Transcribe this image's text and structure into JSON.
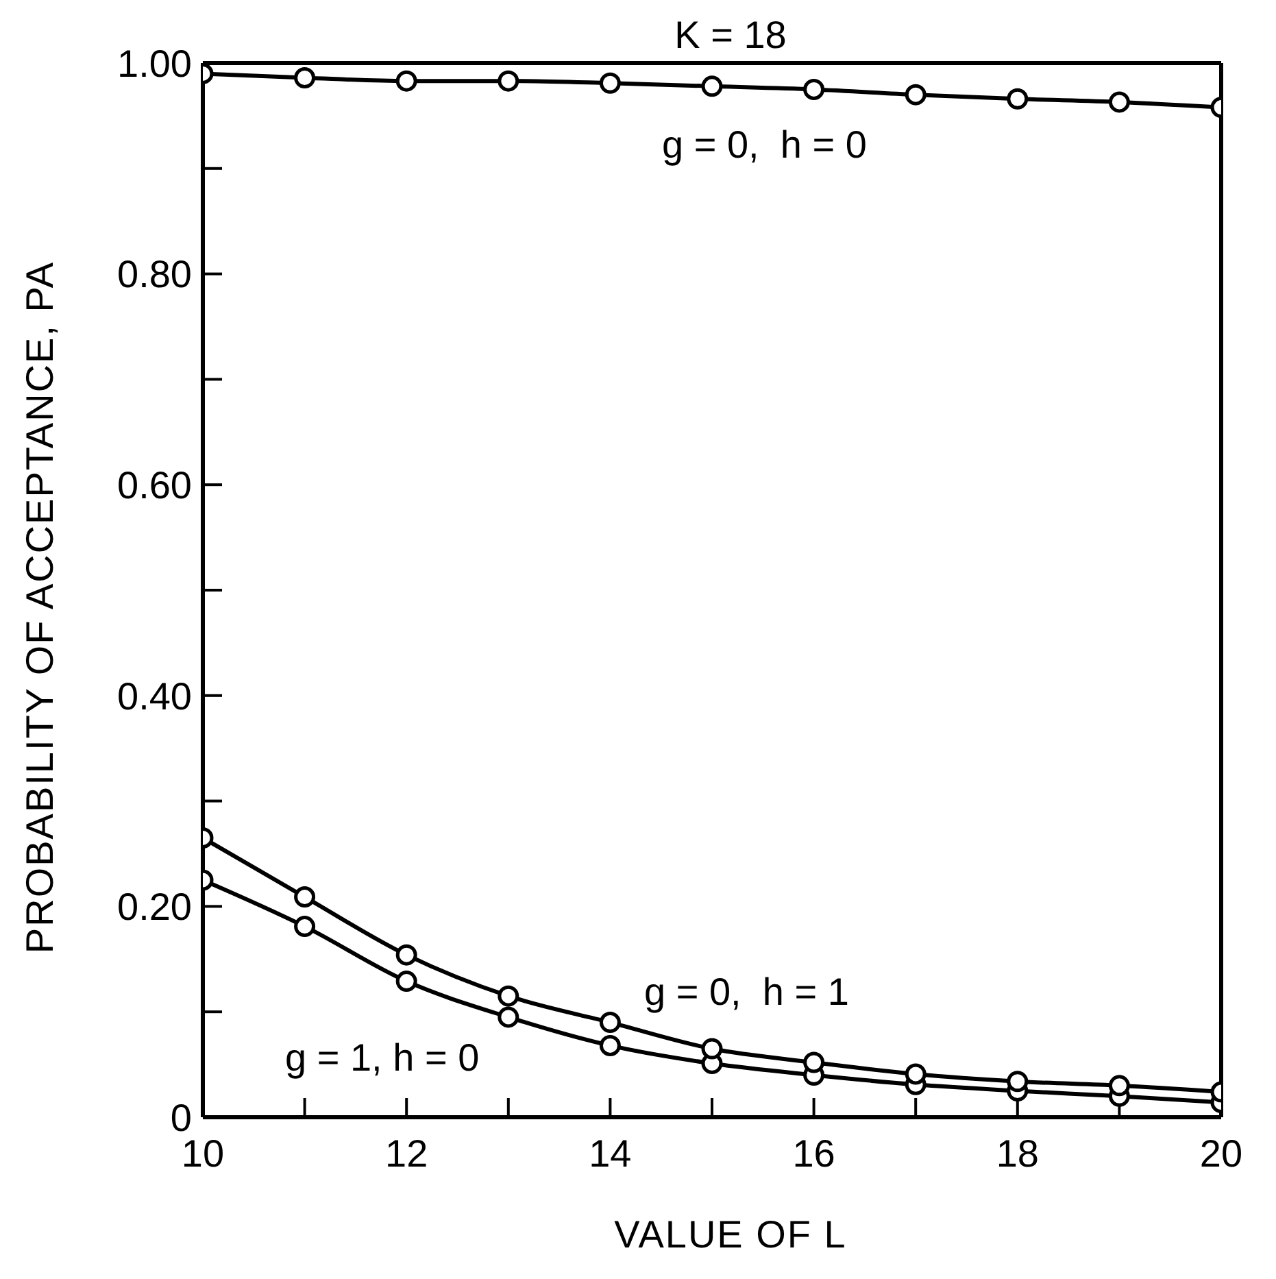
{
  "chart_data": {
    "type": "line",
    "title": "K = 18",
    "xlabel": "VALUE OF L",
    "ylabel": "PROBABILITY OF ACCEPTANCE, PA",
    "x": [
      10,
      11,
      12,
      13,
      14,
      15,
      16,
      17,
      18,
      19,
      20
    ],
    "series": [
      {
        "color": "#000000",
        "values": [
          0.99,
          0.986,
          0.983,
          0.983,
          0.981,
          0.978,
          0.975,
          0.97,
          0.966,
          0.963,
          0.958
        ]
      },
      {
        "color": "#000000",
        "values": [
          0.265,
          0.209,
          0.154,
          0.115,
          0.09,
          0.065,
          0.052,
          0.041,
          0.034,
          0.03,
          0.024
        ]
      },
      {
        "color": "#000000",
        "values": [
          0.225,
          0.181,
          0.129,
          0.095,
          0.068,
          0.051,
          0.04,
          0.031,
          0.025,
          0.02,
          0.014
        ]
      }
    ],
    "xlim": [
      10,
      20
    ],
    "xticks": [
      10,
      {
        "value": 11,
        "label": null
      },
      12,
      {
        "value": 13,
        "label": null
      },
      14,
      {
        "value": 15,
        "label": null
      },
      16,
      {
        "value": 17,
        "label": null
      },
      18,
      {
        "value": 19,
        "label": null
      },
      20
    ],
    "ylim": [
      0,
      1
    ],
    "yticks": [
      0,
      {
        "value": 0.1,
        "label": null
      },
      {
        "value": 0.2,
        "label": "0.20"
      },
      {
        "value": 0.3,
        "label": null
      },
      {
        "value": 0.4,
        "label": "0.40"
      },
      {
        "value": 0.5,
        "label": null
      },
      {
        "value": 0.6,
        "label": "0.60"
      },
      {
        "value": 0.7,
        "label": null
      },
      {
        "value": 0.8,
        "label": "0.80"
      },
      {
        "value": 0.9,
        "label": null
      },
      {
        "value": 1,
        "label": "1.00"
      }
    ],
    "annotations": [
      "g = 0,  h = 0",
      "g = 0,  h = 1",
      "g = 1, h = 0"
    ],
    "marker": "circle",
    "line_style": "solid",
    "grid": false,
    "legend": false
  }
}
